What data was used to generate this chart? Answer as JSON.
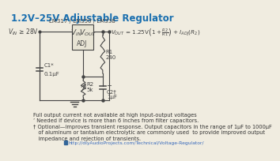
{
  "title": "1.2V–25V Adjustable Regulator",
  "title_color": "#1a6faf",
  "title_fontsize": 8.5,
  "bg_color": "#f0ece0",
  "circuit_color": "#444444",
  "chip_label": "LM317 / LM350 / LM338",
  "chip_label_fontsize": 5.0,
  "footnote1": "Full output current not available at high input-output voltages",
  "footnote2": "’ Needed if device is more than 6 inches from filter capacitors.",
  "footnote3": "† Optional—improves transient response. Output capacitors in the range of 1μF to 1000μF",
  "footnote4": "   of aluminum or tantalum electrolytic are commonly used  to provide improved output",
  "footnote5": "   impedance and rejection of transients.",
  "url": "http://diyAudioProjects.com/Technical/Voltage-Regulator/",
  "footnote_fontsize": 4.8,
  "url_fontsize": 4.3,
  "url_color": "#3366bb"
}
